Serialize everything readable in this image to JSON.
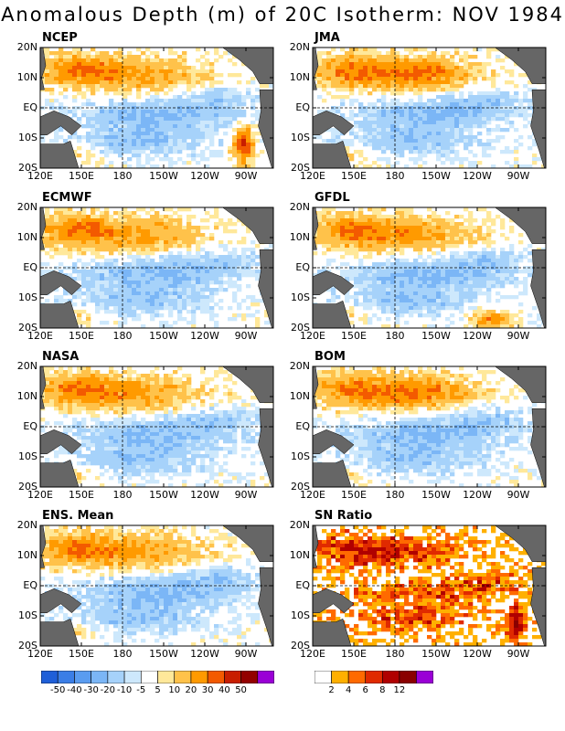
{
  "title": "Anomalous Depth (m) of 20C Isotherm: NOV 1984",
  "panels": [
    {
      "name": "NCEP"
    },
    {
      "name": "JMA"
    },
    {
      "name": "ECMWF"
    },
    {
      "name": "GFDL"
    },
    {
      "name": "NASA"
    },
    {
      "name": "BOM"
    },
    {
      "name": "ENS. Mean"
    },
    {
      "name": "SN Ratio"
    }
  ],
  "y_ticks": [
    "20N",
    "10N",
    "EQ",
    "10S",
    "20S"
  ],
  "x_ticks": [
    "120E",
    "150E",
    "180",
    "150W",
    "120W",
    "90W"
  ],
  "colorbar_anom": {
    "labels": [
      "-50",
      "-40",
      "-30",
      "-20",
      "-10",
      "-5",
      "5",
      "10",
      "20",
      "30",
      "40",
      "50"
    ],
    "colors": [
      "#1f5fd8",
      "#3b7ee6",
      "#5a9cf0",
      "#7bb6f6",
      "#a6d2fa",
      "#cde8fc",
      "#ffffff",
      "#ffe89a",
      "#ffc24a",
      "#ff9a00",
      "#f35a00",
      "#c81e00",
      "#930000",
      "#9a00d6"
    ]
  },
  "colorbar_sn": {
    "labels": [
      "2",
      "4",
      "6",
      "8",
      "12"
    ],
    "colors": [
      "#ffffff",
      "#ffb000",
      "#ff6a00",
      "#e02a00",
      "#b00000",
      "#8a0000",
      "#9a00d6"
    ]
  },
  "chart_data": {
    "type": "heatmap",
    "title": "Anomalous Depth (m) of 20C Isotherm: NOV 1984",
    "x_ticks": [
      "120E",
      "150E",
      "180",
      "150W",
      "120W",
      "90W"
    ],
    "y_ticks": [
      "20N",
      "10N",
      "EQ",
      "10S",
      "20S"
    ],
    "xlim": [
      "120E",
      "70W"
    ],
    "ylim": [
      "20S",
      "20N"
    ],
    "series": [
      {
        "name": "NCEP"
      },
      {
        "name": "JMA"
      },
      {
        "name": "ECMWF"
      },
      {
        "name": "GFDL"
      },
      {
        "name": "NASA"
      },
      {
        "name": "BOM"
      },
      {
        "name": "ENS. Mean"
      },
      {
        "name": "SN Ratio"
      }
    ],
    "colorbar_anomaly_levels": [
      -50,
      -40,
      -30,
      -20,
      -10,
      -5,
      5,
      10,
      20,
      30,
      40,
      50
    ],
    "colorbar_sn_levels": [
      2,
      4,
      6,
      8,
      12
    ]
  }
}
